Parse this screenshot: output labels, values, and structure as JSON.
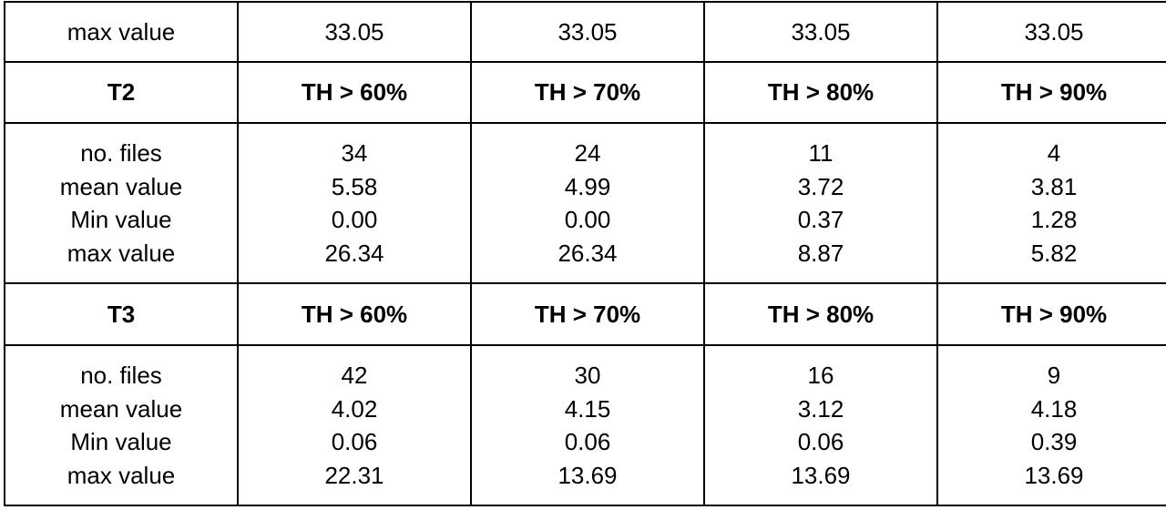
{
  "table": {
    "rows": [
      {
        "bold": false,
        "cells": [
          [
            "max value"
          ],
          [
            "33.05"
          ],
          [
            "33.05"
          ],
          [
            "33.05"
          ],
          [
            "33.05"
          ]
        ]
      },
      {
        "bold": true,
        "cells": [
          [
            "T2"
          ],
          [
            "TH > 60%"
          ],
          [
            "TH > 70%"
          ],
          [
            "TH > 80%"
          ],
          [
            "TH > 90%"
          ]
        ]
      },
      {
        "bold": false,
        "cells": [
          [
            "no. files",
            "mean value",
            "Min value",
            "max value"
          ],
          [
            "34",
            "5.58",
            "0.00",
            "26.34"
          ],
          [
            "24",
            "4.99",
            "0.00",
            "26.34"
          ],
          [
            "11",
            "3.72",
            "0.37",
            "8.87"
          ],
          [
            "4",
            "3.81",
            "1.28",
            "5.82"
          ]
        ]
      },
      {
        "bold": true,
        "cells": [
          [
            "T3"
          ],
          [
            "TH > 60%"
          ],
          [
            "TH > 70%"
          ],
          [
            "TH > 80%"
          ],
          [
            "TH > 90%"
          ]
        ]
      },
      {
        "bold": false,
        "cells": [
          [
            "no. files",
            "mean value",
            "Min value",
            "max value"
          ],
          [
            "42",
            "4.02",
            "0.06",
            "22.31"
          ],
          [
            "30",
            "4.15",
            "0.06",
            "13.69"
          ],
          [
            "16",
            "3.12",
            "0.06",
            "13.69"
          ],
          [
            "9",
            "4.18",
            "0.39",
            "13.69"
          ]
        ]
      }
    ]
  }
}
